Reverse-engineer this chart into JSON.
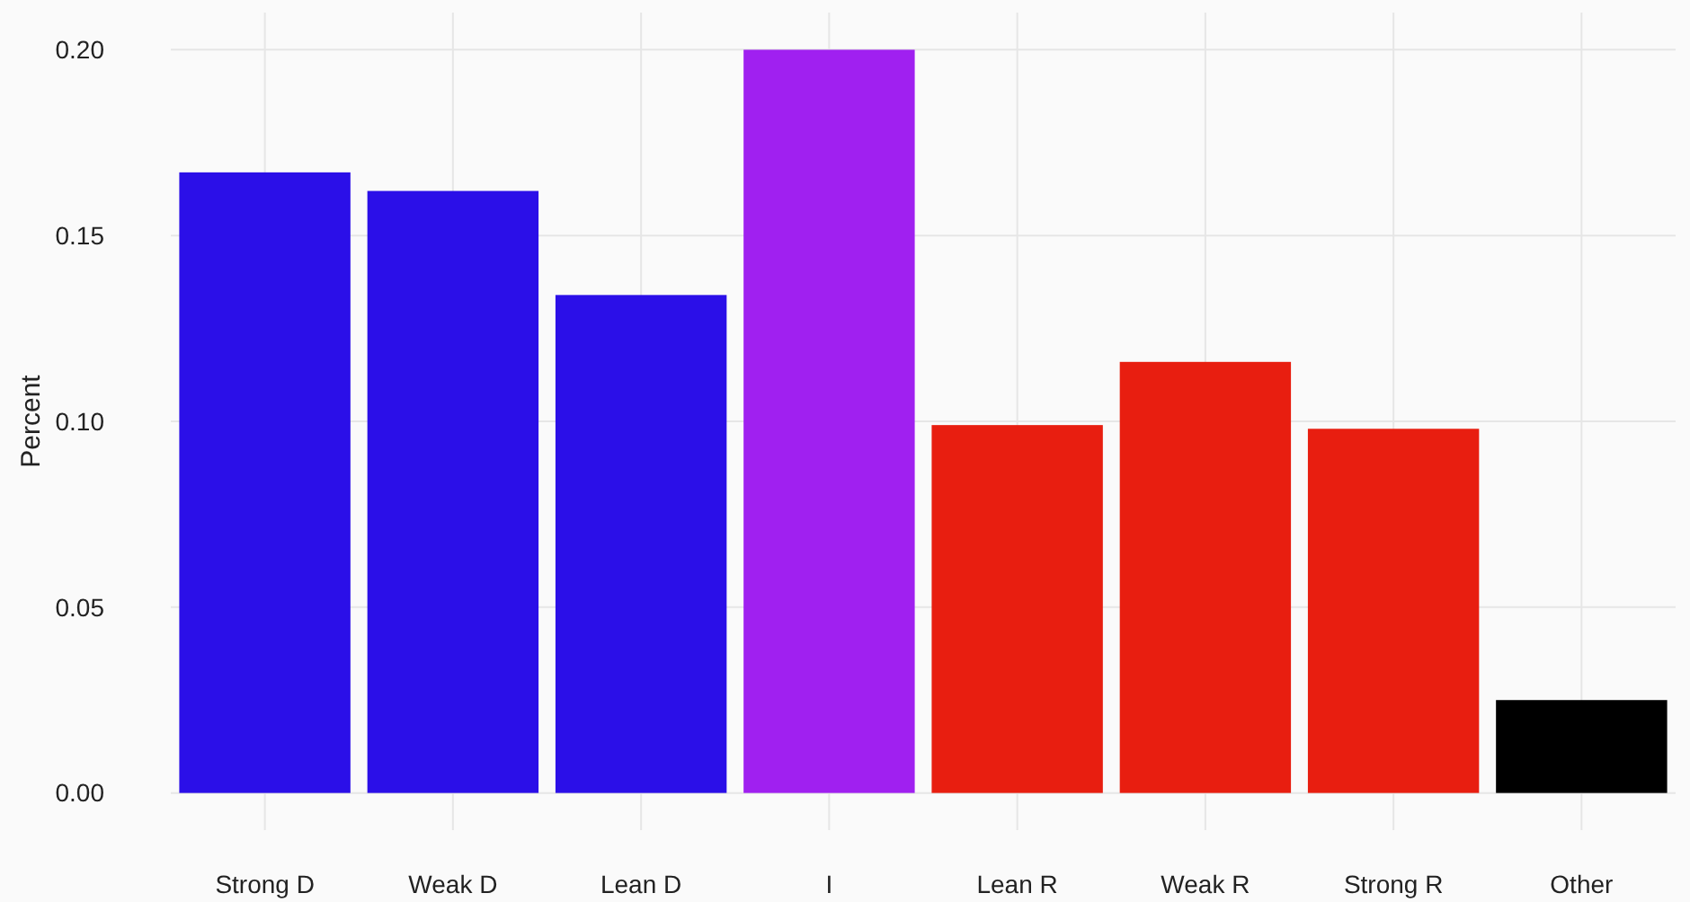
{
  "chart_data": {
    "type": "bar",
    "ylabel": "Percent",
    "categories": [
      "Strong D",
      "Weak D",
      "Lean D",
      "I",
      "Lean R",
      "Weak R",
      "Strong R",
      "Other"
    ],
    "values": [
      0.167,
      0.162,
      0.134,
      0.2,
      0.099,
      0.116,
      0.098,
      0.025
    ],
    "colors": [
      "#2b0fe8",
      "#2b0fe8",
      "#2b0fe8",
      "#a020f0",
      "#e81e10",
      "#e81e10",
      "#e81e10",
      "#000000"
    ],
    "ylim": [
      -0.01,
      0.21
    ],
    "yticks": [
      {
        "value": 0,
        "label": "0.00"
      },
      {
        "value": 0.05,
        "label": "0.05"
      },
      {
        "value": 0.1,
        "label": "0.10"
      },
      {
        "value": 0.15,
        "label": "0.15"
      },
      {
        "value": 0.2,
        "label": "0.20"
      }
    ],
    "grid": true
  }
}
